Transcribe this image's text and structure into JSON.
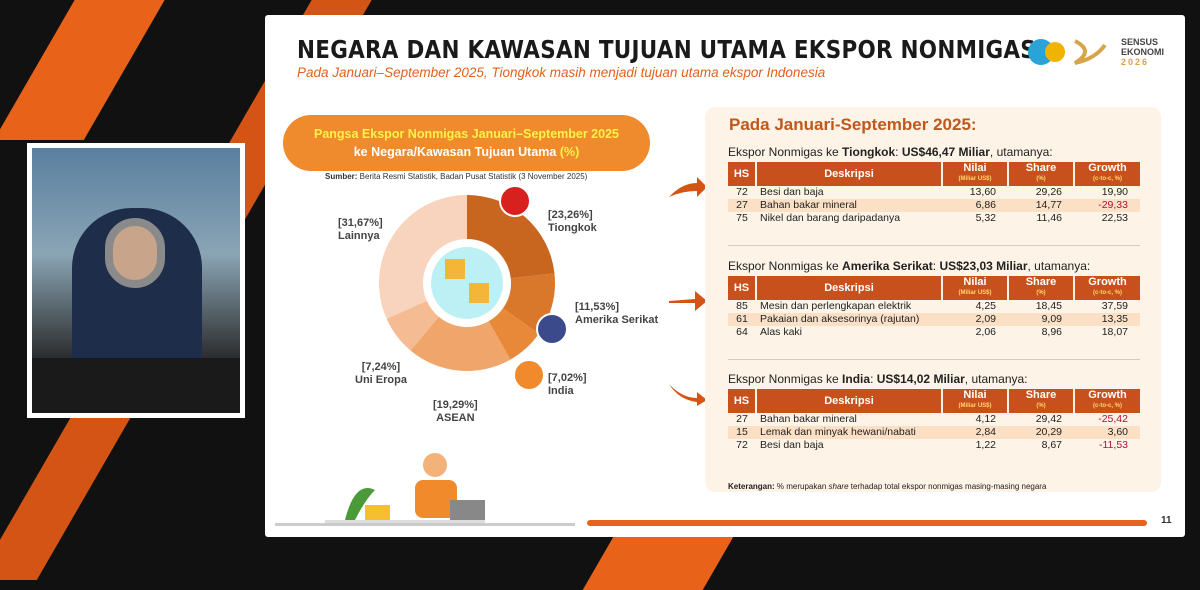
{
  "slide": {
    "title": "NEGARA DAN KAWASAN TUJUAN UTAMA EKSPOR NONMIGAS",
    "subtitle": "Pada Januari–September 2025, Tiongkok masih menjadi tujuan utama ekspor Indonesia",
    "logo": {
      "line1": "SENSUS",
      "line2": "EKONOMI",
      "line3": "2026"
    },
    "pill": {
      "line1": "Pangsa Ekspor Nonmigas Januari–September 2025",
      "line2": "ke Negara/Kawasan Tujuan Utama ",
      "unit": "(%)"
    },
    "source": {
      "label": "Sumber:",
      "text": " Berita Resmi Statistik, Badan Pusat Statistik (3 November 2025)"
    },
    "page_number": "11"
  },
  "chart_data": {
    "type": "pie",
    "style": "donut",
    "slices": [
      {
        "name": "Tiongkok",
        "value": 23.26,
        "label": "[23,26%]",
        "color": "#c8651f"
      },
      {
        "name": "Amerika Serikat",
        "value": 11.53,
        "label": "[11,53%]",
        "color": "#d9772a"
      },
      {
        "name": "India",
        "value": 7.02,
        "label": "[7,02%]",
        "color": "#e8893a"
      },
      {
        "name": "ASEAN",
        "value": 19.29,
        "label": "[19,29%]",
        "color": "#f0a66a"
      },
      {
        "name": "Uni Eropa",
        "value": 7.24,
        "label": "[7,24%]",
        "color": "#f5bc94"
      },
      {
        "name": "Lainnya",
        "value": 31.67,
        "label": "[31,67%]",
        "color": "#f8d3bd"
      }
    ]
  },
  "panel": {
    "heading": "Pada Januari-September 2025:",
    "headers": {
      "hs": "HS",
      "desc": "Deskripsi",
      "nilai": "Nilai",
      "nilai_unit": "(Miliar US$)",
      "share": "Share",
      "share_unit": "(%)",
      "growth": "Growth",
      "growth_unit": "(c-to-c, %)"
    },
    "sections": [
      {
        "prefix": "Ekspor Nonmigas ke ",
        "country": "Tiongkok",
        "mid": ": ",
        "amount": "US$46,47 Miliar",
        "suffix": ", utamanya:",
        "rows": [
          [
            "72",
            "Besi dan baja",
            "13,60",
            "29,26",
            "19,90"
          ],
          [
            "27",
            "Bahan bakar mineral",
            "6,86",
            "14,77",
            "-29,33"
          ],
          [
            "75",
            "Nikel dan barang daripadanya",
            "5,32",
            "11,46",
            "22,53"
          ]
        ]
      },
      {
        "prefix": "Ekspor Nonmigas ke ",
        "country": "Amerika Serikat",
        "mid": ": ",
        "amount": "US$23,03 Miliar",
        "suffix": ", utamanya:",
        "rows": [
          [
            "85",
            "Mesin dan perlengkapan elektrik",
            "4,25",
            "18,45",
            "37,59"
          ],
          [
            "61",
            "Pakaian dan aksesorinya (rajutan)",
            "2,09",
            "9,09",
            "13,35"
          ],
          [
            "64",
            "Alas kaki",
            "2,06",
            "8,96",
            "18,07"
          ]
        ]
      },
      {
        "prefix": "Ekspor Nonmigas ke ",
        "country": "India",
        "mid": ": ",
        "amount": "US$14,02 Miliar",
        "suffix": ", utamanya:",
        "rows": [
          [
            "27",
            "Bahan bakar mineral",
            "4,12",
            "29,42",
            "-25,42"
          ],
          [
            "15",
            "Lemak dan minyak hewani/nabati",
            "2,84",
            "20,29",
            "3,60"
          ],
          [
            "72",
            "Besi dan baja",
            "1,22",
            "8,67",
            "-11,53"
          ]
        ]
      }
    ],
    "note_label": "Keterangan:",
    "note_a": " % merupakan ",
    "note_em": "share",
    "note_b": " terhadap total ekspor nonmigas masing-masing negara"
  },
  "colors": {
    "accent": "#e8621a",
    "header": "#c8501c",
    "negative": "#b0103a"
  }
}
